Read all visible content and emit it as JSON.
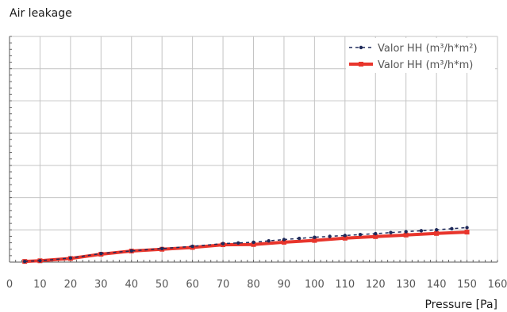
{
  "chart_data": {
    "type": "line",
    "title": "Air leakage",
    "xlabel": "Pressure [Pa]",
    "ylabel": "",
    "xlim": [
      0,
      160
    ],
    "ylim": [
      0,
      100
    ],
    "x_ticks": [
      0,
      10,
      20,
      30,
      40,
      50,
      60,
      70,
      80,
      90,
      100,
      110,
      120,
      130,
      140,
      150,
      160
    ],
    "y_tick_labels": "none",
    "grid": true,
    "legend_position": "top-right",
    "series": [
      {
        "name": "Valor HH (m³/h*m²)",
        "style": "dashed-markers",
        "color": "#1f2a5a",
        "x": [
          5,
          10,
          20,
          30,
          40,
          50,
          60,
          70,
          75,
          80,
          85,
          90,
          95,
          100,
          105,
          110,
          115,
          120,
          125,
          130,
          135,
          140,
          145,
          150
        ],
        "y": [
          0.3,
          0.6,
          1.8,
          3.8,
          5.0,
          6.0,
          7.0,
          8.2,
          8.5,
          8.8,
          9.4,
          10.0,
          10.5,
          11.0,
          11.4,
          11.8,
          12.2,
          12.6,
          13.1,
          13.5,
          13.9,
          14.3,
          14.8,
          15.3
        ]
      },
      {
        "name": "Valor HH (m³/h*m)",
        "style": "solid-markers",
        "color": "#e8352c",
        "x": [
          5,
          10,
          20,
          30,
          40,
          50,
          60,
          70,
          80,
          90,
          100,
          110,
          120,
          130,
          140,
          150
        ],
        "y": [
          0.3,
          0.6,
          1.6,
          3.5,
          4.9,
          5.7,
          6.5,
          7.7,
          7.8,
          8.8,
          9.6,
          10.6,
          11.3,
          12.0,
          12.7,
          13.3
        ]
      }
    ]
  }
}
